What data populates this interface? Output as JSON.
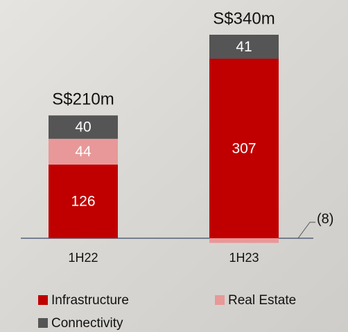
{
  "chart_data": {
    "type": "stacked_bar",
    "categories": [
      "1H22",
      "1H23"
    ],
    "series": [
      {
        "name": "Infrastructure",
        "color": "#c00000",
        "values": [
          126,
          307
        ]
      },
      {
        "name": "Real Estate",
        "color": "#e89898",
        "values": [
          44,
          -8
        ],
        "value_labels": [
          "44",
          "(8)"
        ]
      },
      {
        "name": "Connectivity",
        "color": "#555555",
        "values": [
          40,
          41
        ]
      }
    ],
    "totals": {
      "values": [
        210,
        340
      ],
      "value_labels": [
        "S$210m",
        "S$340m"
      ]
    }
  }
}
